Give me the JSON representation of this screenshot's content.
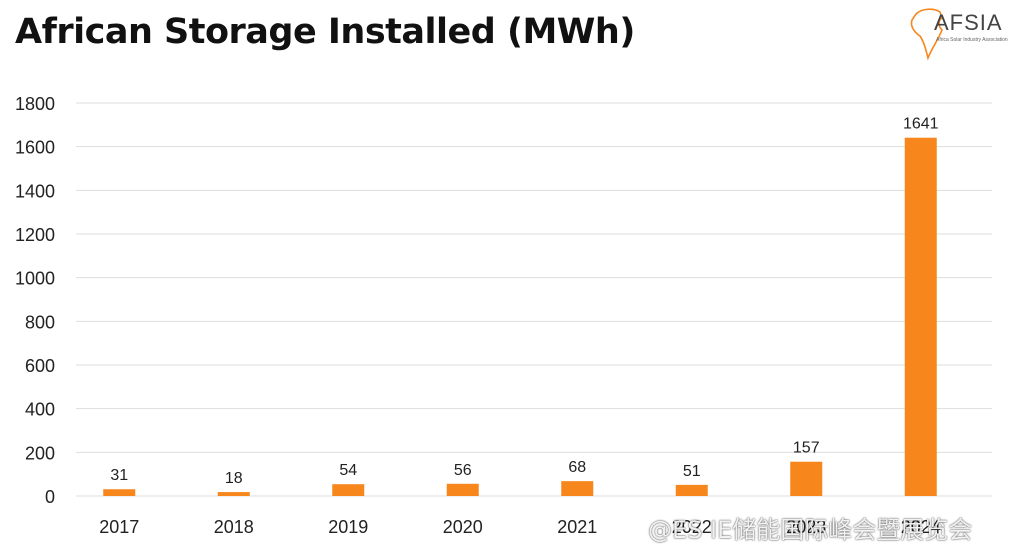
{
  "logo": {
    "text": "AFSIA",
    "subtitle": "Africa Solar Industry Association"
  },
  "watermark": "@ES IE储能国际峰会暨展览会",
  "colors": {
    "bar": "#F7861C",
    "grid": "#dddddd",
    "text": "#222222"
  },
  "chart_data": {
    "type": "bar",
    "title": "African Storage Installed (MWh)",
    "xlabel": "",
    "ylabel": "",
    "categories": [
      "2017",
      "2018",
      "2019",
      "2020",
      "2021",
      "2022",
      "2023",
      "2024"
    ],
    "values": [
      31,
      18,
      54,
      56,
      68,
      51,
      157,
      1641
    ],
    "data_labels": [
      "31",
      "18",
      "54",
      "56",
      "68",
      "51",
      "157",
      "1641"
    ],
    "ylim": [
      0,
      1800
    ],
    "yticks": [
      0,
      200,
      400,
      600,
      800,
      1000,
      1200,
      1400,
      1600,
      1800
    ],
    "grid": true,
    "legend": "none"
  }
}
